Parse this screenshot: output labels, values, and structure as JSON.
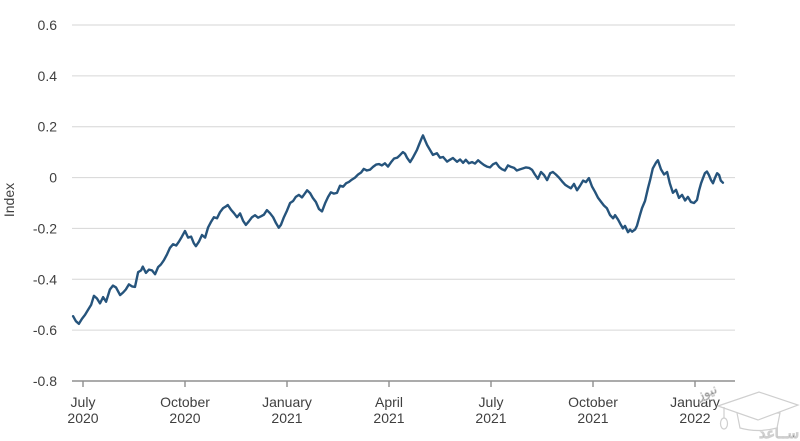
{
  "page": {
    "background": "#ffffff"
  },
  "style": {
    "grid_color": "#d6d6d6",
    "axis_color": "#8f8f8f",
    "text_color": "#3f3f3f"
  },
  "chart_data": {
    "type": "line",
    "title": "",
    "ylabel": "Index",
    "ylim": [
      -0.8,
      0.6
    ],
    "ytick_values": [
      0.6,
      0.4,
      0.2,
      0,
      -0.2,
      -0.4,
      -0.6,
      -0.8
    ],
    "ytick_labels": [
      "0.6",
      "0.4",
      "0.2",
      "0",
      "-0.2",
      "-0.4",
      "-0.6",
      "-0.8"
    ],
    "grid": "horizontal",
    "legend": "none",
    "x_unit": "months since July 2020",
    "xtick_values": [
      0,
      3,
      6,
      9,
      12,
      15,
      18
    ],
    "xtick_labels": [
      [
        "July",
        "2020"
      ],
      [
        "October",
        "2020"
      ],
      [
        "January",
        "2021"
      ],
      [
        "April",
        "2021"
      ],
      [
        "July",
        "2021"
      ],
      [
        "October",
        "2021"
      ],
      [
        "January",
        "2022"
      ]
    ],
    "series": [
      {
        "name": "Index",
        "color": "#26547c",
        "points": [
          [
            -0.29,
            -0.545
          ],
          [
            -0.21,
            -0.565
          ],
          [
            -0.12,
            -0.575
          ],
          [
            -0.03,
            -0.555
          ],
          [
            0.06,
            -0.54
          ],
          [
            0.15,
            -0.52
          ],
          [
            0.24,
            -0.5
          ],
          [
            0.32,
            -0.465
          ],
          [
            0.41,
            -0.475
          ],
          [
            0.5,
            -0.495
          ],
          [
            0.59,
            -0.47
          ],
          [
            0.68,
            -0.488
          ],
          [
            0.79,
            -0.44
          ],
          [
            0.88,
            -0.425
          ],
          [
            0.97,
            -0.432
          ],
          [
            1.09,
            -0.462
          ],
          [
            1.18,
            -0.452
          ],
          [
            1.26,
            -0.44
          ],
          [
            1.35,
            -0.42
          ],
          [
            1.44,
            -0.428
          ],
          [
            1.53,
            -0.43
          ],
          [
            1.62,
            -0.372
          ],
          [
            1.71,
            -0.365
          ],
          [
            1.76,
            -0.35
          ],
          [
            1.85,
            -0.375
          ],
          [
            1.94,
            -0.362
          ],
          [
            2.03,
            -0.365
          ],
          [
            2.12,
            -0.38
          ],
          [
            2.21,
            -0.352
          ],
          [
            2.29,
            -0.342
          ],
          [
            2.38,
            -0.325
          ],
          [
            2.47,
            -0.302
          ],
          [
            2.56,
            -0.276
          ],
          [
            2.65,
            -0.262
          ],
          [
            2.74,
            -0.267
          ],
          [
            2.82,
            -0.252
          ],
          [
            2.91,
            -0.232
          ],
          [
            3.0,
            -0.21
          ],
          [
            3.09,
            -0.236
          ],
          [
            3.18,
            -0.232
          ],
          [
            3.26,
            -0.258
          ],
          [
            3.32,
            -0.27
          ],
          [
            3.41,
            -0.252
          ],
          [
            3.5,
            -0.226
          ],
          [
            3.59,
            -0.236
          ],
          [
            3.68,
            -0.196
          ],
          [
            3.76,
            -0.176
          ],
          [
            3.85,
            -0.156
          ],
          [
            3.94,
            -0.16
          ],
          [
            4.03,
            -0.136
          ],
          [
            4.12,
            -0.12
          ],
          [
            4.21,
            -0.113
          ],
          [
            4.26,
            -0.108
          ],
          [
            4.35,
            -0.126
          ],
          [
            4.44,
            -0.14
          ],
          [
            4.53,
            -0.156
          ],
          [
            4.62,
            -0.141
          ],
          [
            4.71,
            -0.17
          ],
          [
            4.79,
            -0.186
          ],
          [
            4.88,
            -0.172
          ],
          [
            4.97,
            -0.156
          ],
          [
            5.06,
            -0.148
          ],
          [
            5.15,
            -0.158
          ],
          [
            5.24,
            -0.152
          ],
          [
            5.32,
            -0.146
          ],
          [
            5.41,
            -0.128
          ],
          [
            5.5,
            -0.14
          ],
          [
            5.59,
            -0.156
          ],
          [
            5.68,
            -0.18
          ],
          [
            5.76,
            -0.197
          ],
          [
            5.82,
            -0.186
          ],
          [
            5.91,
            -0.156
          ],
          [
            6.0,
            -0.13
          ],
          [
            6.09,
            -0.1
          ],
          [
            6.18,
            -0.092
          ],
          [
            6.26,
            -0.076
          ],
          [
            6.35,
            -0.068
          ],
          [
            6.44,
            -0.078
          ],
          [
            6.53,
            -0.062
          ],
          [
            6.59,
            -0.05
          ],
          [
            6.68,
            -0.061
          ],
          [
            6.76,
            -0.08
          ],
          [
            6.85,
            -0.096
          ],
          [
            6.94,
            -0.124
          ],
          [
            7.03,
            -0.133
          ],
          [
            7.12,
            -0.101
          ],
          [
            7.21,
            -0.076
          ],
          [
            7.29,
            -0.058
          ],
          [
            7.38,
            -0.063
          ],
          [
            7.47,
            -0.06
          ],
          [
            7.56,
            -0.032
          ],
          [
            7.65,
            -0.036
          ],
          [
            7.74,
            -0.022
          ],
          [
            7.82,
            -0.017
          ],
          [
            7.91,
            -0.008
          ],
          [
            8.0,
            0.0
          ],
          [
            8.09,
            0.012
          ],
          [
            8.18,
            0.02
          ],
          [
            8.26,
            0.034
          ],
          [
            8.35,
            0.028
          ],
          [
            8.44,
            0.031
          ],
          [
            8.53,
            0.042
          ],
          [
            8.62,
            0.051
          ],
          [
            8.71,
            0.053
          ],
          [
            8.79,
            0.048
          ],
          [
            8.88,
            0.056
          ],
          [
            8.97,
            0.043
          ],
          [
            9.06,
            0.06
          ],
          [
            9.15,
            0.075
          ],
          [
            9.24,
            0.078
          ],
          [
            9.32,
            0.088
          ],
          [
            9.41,
            0.1
          ],
          [
            9.47,
            0.094
          ],
          [
            9.53,
            0.078
          ],
          [
            9.62,
            0.061
          ],
          [
            9.71,
            0.08
          ],
          [
            9.82,
            0.108
          ],
          [
            9.88,
            0.128
          ],
          [
            9.97,
            0.158
          ],
          [
            10.0,
            0.166
          ],
          [
            10.06,
            0.147
          ],
          [
            10.12,
            0.128
          ],
          [
            10.21,
            0.108
          ],
          [
            10.29,
            0.089
          ],
          [
            10.41,
            0.096
          ],
          [
            10.5,
            0.078
          ],
          [
            10.59,
            0.081
          ],
          [
            10.71,
            0.063
          ],
          [
            10.79,
            0.07
          ],
          [
            10.88,
            0.077
          ],
          [
            11.0,
            0.062
          ],
          [
            11.09,
            0.071
          ],
          [
            11.18,
            0.058
          ],
          [
            11.26,
            0.07
          ],
          [
            11.35,
            0.056
          ],
          [
            11.44,
            0.061
          ],
          [
            11.53,
            0.055
          ],
          [
            11.62,
            0.068
          ],
          [
            11.71,
            0.058
          ],
          [
            11.79,
            0.05
          ],
          [
            11.88,
            0.043
          ],
          [
            11.97,
            0.04
          ],
          [
            12.06,
            0.052
          ],
          [
            12.15,
            0.058
          ],
          [
            12.24,
            0.041
          ],
          [
            12.32,
            0.033
          ],
          [
            12.41,
            0.028
          ],
          [
            12.5,
            0.048
          ],
          [
            12.59,
            0.042
          ],
          [
            12.68,
            0.038
          ],
          [
            12.76,
            0.028
          ],
          [
            12.85,
            0.032
          ],
          [
            12.94,
            0.036
          ],
          [
            13.03,
            0.04
          ],
          [
            13.12,
            0.038
          ],
          [
            13.21,
            0.03
          ],
          [
            13.29,
            0.012
          ],
          [
            13.38,
            -0.005
          ],
          [
            13.47,
            0.022
          ],
          [
            13.56,
            0.01
          ],
          [
            13.65,
            -0.01
          ],
          [
            13.74,
            0.017
          ],
          [
            13.82,
            0.022
          ],
          [
            13.91,
            0.012
          ],
          [
            14.0,
            0.0
          ],
          [
            14.09,
            -0.015
          ],
          [
            14.18,
            -0.028
          ],
          [
            14.26,
            -0.035
          ],
          [
            14.35,
            -0.042
          ],
          [
            14.44,
            -0.025
          ],
          [
            14.53,
            -0.05
          ],
          [
            14.62,
            -0.032
          ],
          [
            14.71,
            -0.012
          ],
          [
            14.79,
            -0.018
          ],
          [
            14.88,
            -0.002
          ],
          [
            14.97,
            -0.035
          ],
          [
            15.06,
            -0.056
          ],
          [
            15.15,
            -0.08
          ],
          [
            15.24,
            -0.096
          ],
          [
            15.32,
            -0.11
          ],
          [
            15.41,
            -0.121
          ],
          [
            15.5,
            -0.147
          ],
          [
            15.59,
            -0.16
          ],
          [
            15.65,
            -0.148
          ],
          [
            15.74,
            -0.166
          ],
          [
            15.82,
            -0.186
          ],
          [
            15.88,
            -0.2
          ],
          [
            15.94,
            -0.19
          ],
          [
            16.03,
            -0.215
          ],
          [
            16.09,
            -0.205
          ],
          [
            16.15,
            -0.213
          ],
          [
            16.24,
            -0.204
          ],
          [
            16.29,
            -0.19
          ],
          [
            16.38,
            -0.148
          ],
          [
            16.44,
            -0.12
          ],
          [
            16.53,
            -0.092
          ],
          [
            16.62,
            -0.04
          ],
          [
            16.68,
            -0.01
          ],
          [
            16.76,
            0.036
          ],
          [
            16.85,
            0.058
          ],
          [
            16.91,
            0.068
          ],
          [
            17.0,
            0.032
          ],
          [
            17.09,
            0.012
          ],
          [
            17.18,
            0.022
          ],
          [
            17.26,
            -0.022
          ],
          [
            17.35,
            -0.06
          ],
          [
            17.44,
            -0.048
          ],
          [
            17.53,
            -0.08
          ],
          [
            17.62,
            -0.068
          ],
          [
            17.71,
            -0.09
          ],
          [
            17.79,
            -0.076
          ],
          [
            17.88,
            -0.096
          ],
          [
            17.97,
            -0.1
          ],
          [
            18.06,
            -0.088
          ],
          [
            18.12,
            -0.05
          ],
          [
            18.18,
            -0.022
          ],
          [
            18.24,
            0.0
          ],
          [
            18.29,
            0.017
          ],
          [
            18.35,
            0.024
          ],
          [
            18.41,
            0.01
          ],
          [
            18.47,
            -0.01
          ],
          [
            18.53,
            -0.022
          ],
          [
            18.59,
            0.0
          ],
          [
            18.65,
            0.017
          ],
          [
            18.71,
            0.01
          ],
          [
            18.76,
            -0.012
          ],
          [
            18.82,
            -0.02
          ]
        ]
      }
    ]
  },
  "watermark": {
    "text_main": "ســاعد",
    "text_small": "نیوز",
    "outline_color": "#cfcfcf",
    "fill_color": "#ffffff"
  }
}
